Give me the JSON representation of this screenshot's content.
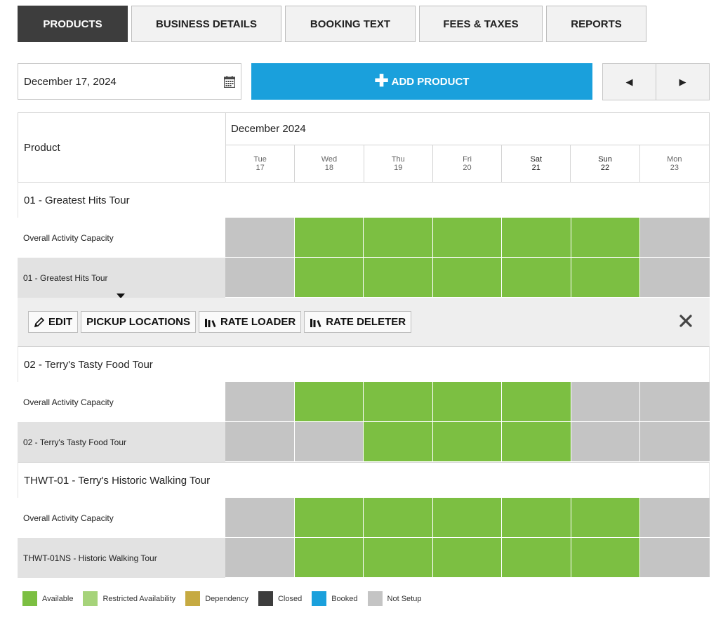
{
  "tabs": [
    {
      "label": "PRODUCTS",
      "active": true
    },
    {
      "label": "BUSINESS DETAILS",
      "active": false
    },
    {
      "label": "BOOKING TEXT",
      "active": false
    },
    {
      "label": "FEES & TAXES",
      "active": false
    },
    {
      "label": "REPORTS",
      "active": false
    }
  ],
  "toolbar": {
    "date_value": "December 17, 2024",
    "add_product_label": "ADD PRODUCT",
    "prev_icon": "triangle-left",
    "next_icon": "triangle-right"
  },
  "grid": {
    "product_header": "Product",
    "month_header": "December 2024",
    "days": [
      {
        "dow": "Tue",
        "date": "17"
      },
      {
        "dow": "Wed",
        "date": "18"
      },
      {
        "dow": "Thu",
        "date": "19"
      },
      {
        "dow": "Fri",
        "date": "20"
      },
      {
        "dow": "Sat",
        "date": "21"
      },
      {
        "dow": "Sun",
        "date": "22"
      },
      {
        "dow": "Mon",
        "date": "23"
      }
    ]
  },
  "groups": [
    {
      "title": "01 - Greatest Hits Tour",
      "rows": [
        {
          "label": "Overall Activity Capacity",
          "cells": [
            "notsetup",
            "available",
            "available",
            "available",
            "available",
            "available",
            "notsetup"
          ]
        },
        {
          "label": "01 - Greatest Hits Tour",
          "cells": [
            "notsetup",
            "available",
            "available",
            "available",
            "available",
            "available",
            "notsetup"
          ]
        }
      ]
    },
    {
      "title": "02 - Terry's Tasty Food Tour",
      "rows": [
        {
          "label": "Overall Activity Capacity",
          "cells": [
            "notsetup",
            "available",
            "available",
            "available",
            "available",
            "notsetup",
            "notsetup"
          ]
        },
        {
          "label": "02 - Terry's Tasty Food Tour",
          "cells": [
            "notsetup",
            "notsetup",
            "available",
            "available",
            "available",
            "notsetup",
            "notsetup"
          ]
        }
      ]
    },
    {
      "title": "THWT-01 - Terry's Historic Walking Tour",
      "rows": [
        {
          "label": "Overall Activity Capacity",
          "cells": [
            "notsetup",
            "available",
            "available",
            "available",
            "available",
            "available",
            "notsetup"
          ]
        },
        {
          "label": "THWT-01NS - Historic Walking Tour",
          "cells": [
            "notsetup",
            "available",
            "available",
            "available",
            "available",
            "available",
            "notsetup"
          ]
        }
      ]
    }
  ],
  "action_bar": {
    "edit_label": "EDIT",
    "pickup_label": "PICKUP LOCATIONS",
    "rate_loader_label": "RATE LOADER",
    "rate_deleter_label": "RATE DELETER"
  },
  "legend": [
    {
      "label": "Available",
      "color": "#7cbf42"
    },
    {
      "label": "Restricted Availability",
      "color": "#a6d37a"
    },
    {
      "label": "Dependency",
      "color": "#c6aa42"
    },
    {
      "label": "Closed",
      "color": "#3d3d3d"
    },
    {
      "label": "Booked",
      "color": "#1aa0dc"
    },
    {
      "label": "Not Setup",
      "color": "#c4c4c4"
    }
  ],
  "colors": {
    "available": "#7cbf42",
    "notsetup": "#c4c4c4",
    "accent": "#1aa0dc",
    "tab_active": "#3d3d3d"
  }
}
